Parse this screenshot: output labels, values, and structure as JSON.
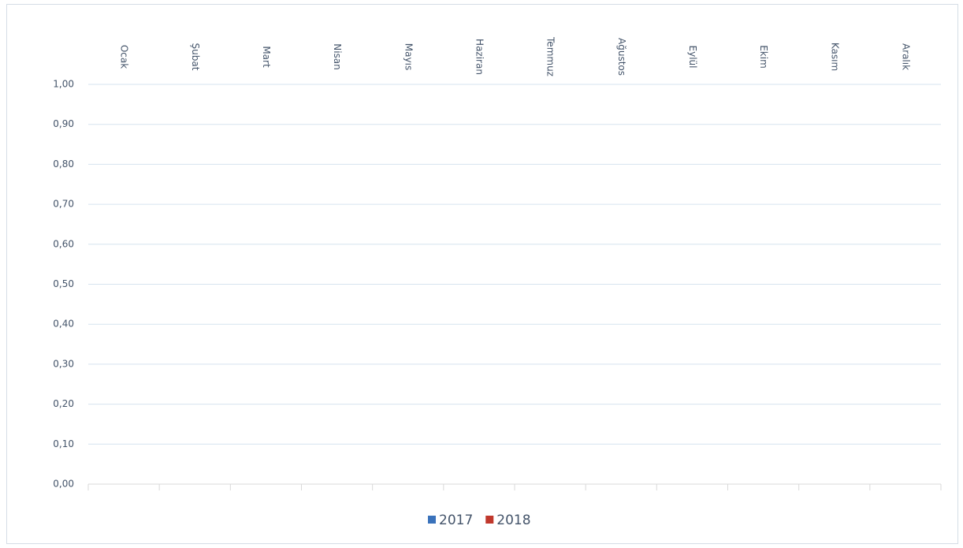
{
  "chart_data": {
    "type": "bar",
    "categories": [
      "Ocak",
      "Şubat",
      "Mart",
      "Nisan",
      "Mayıs",
      "Haziran",
      "Temmuz",
      "Ağustos",
      "Eylül",
      "Ekim",
      "Kasım",
      "Aralık"
    ],
    "series": [
      {
        "name": "2017",
        "color": "#3a72bb",
        "values": [
          null,
          null,
          null,
          null,
          null,
          null,
          null,
          null,
          null,
          null,
          null,
          null
        ]
      },
      {
        "name": "2018",
        "color": "#c0382c",
        "values": [
          null,
          null,
          null,
          null,
          null,
          null,
          null,
          null,
          null,
          null,
          null,
          null
        ]
      }
    ],
    "ylim": [
      0,
      1
    ],
    "yticks": [
      {
        "value": 0,
        "label": "0,00"
      },
      {
        "value": 0.1,
        "label": "0,10"
      },
      {
        "value": 0.2,
        "label": "0,20"
      },
      {
        "value": 0.3,
        "label": "0,30"
      },
      {
        "value": 0.4,
        "label": "0,40"
      },
      {
        "value": 0.5,
        "label": "0,50"
      },
      {
        "value": 0.6,
        "label": "0,60"
      },
      {
        "value": 0.7,
        "label": "0,70"
      },
      {
        "value": 0.8,
        "label": "0,80"
      },
      {
        "value": 0.9,
        "label": "0,90"
      },
      {
        "value": 1,
        "label": "1,00"
      }
    ],
    "grid": true,
    "legend": "bottom"
  }
}
